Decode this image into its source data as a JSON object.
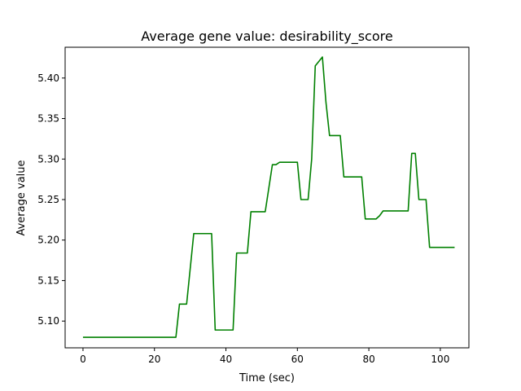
{
  "chart_data": {
    "type": "line",
    "title": "Average gene value: desirability_score",
    "xlabel": "Time (sec)",
    "ylabel": "Average value",
    "xlim": [
      -5,
      108
    ],
    "ylim": [
      5.067,
      5.438
    ],
    "xticks": [
      0,
      20,
      40,
      60,
      80,
      100
    ],
    "xtick_labels": [
      "0",
      "20",
      "40",
      "60",
      "80",
      "100"
    ],
    "yticks": [
      5.1,
      5.15,
      5.2,
      5.25,
      5.3,
      5.35,
      5.4
    ],
    "ytick_labels": [
      "5.10",
      "5.15",
      "5.20",
      "5.25",
      "5.30",
      "5.35",
      "5.40"
    ],
    "grid": false,
    "color": "#008000",
    "series": [
      {
        "x": [
          0,
          26,
          27,
          29,
          31,
          34,
          36,
          37,
          40,
          42,
          43,
          46,
          47,
          49,
          51,
          53,
          54,
          55,
          58,
          60,
          61,
          63,
          64,
          65,
          67,
          68,
          69,
          72,
          73,
          78,
          79,
          82,
          83,
          84,
          88,
          91,
          92,
          93,
          94,
          96,
          97,
          104
        ],
        "y": [
          5.08,
          5.08,
          5.121,
          5.121,
          5.208,
          5.208,
          5.208,
          5.089,
          5.089,
          5.089,
          5.184,
          5.184,
          5.235,
          5.235,
          5.235,
          5.293,
          5.293,
          5.296,
          5.296,
          5.296,
          5.25,
          5.25,
          5.3,
          5.415,
          5.426,
          5.37,
          5.329,
          5.329,
          5.278,
          5.278,
          5.226,
          5.226,
          5.23,
          5.236,
          5.236,
          5.236,
          5.307,
          5.307,
          5.25,
          5.25,
          5.191,
          5.191
        ]
      }
    ]
  }
}
